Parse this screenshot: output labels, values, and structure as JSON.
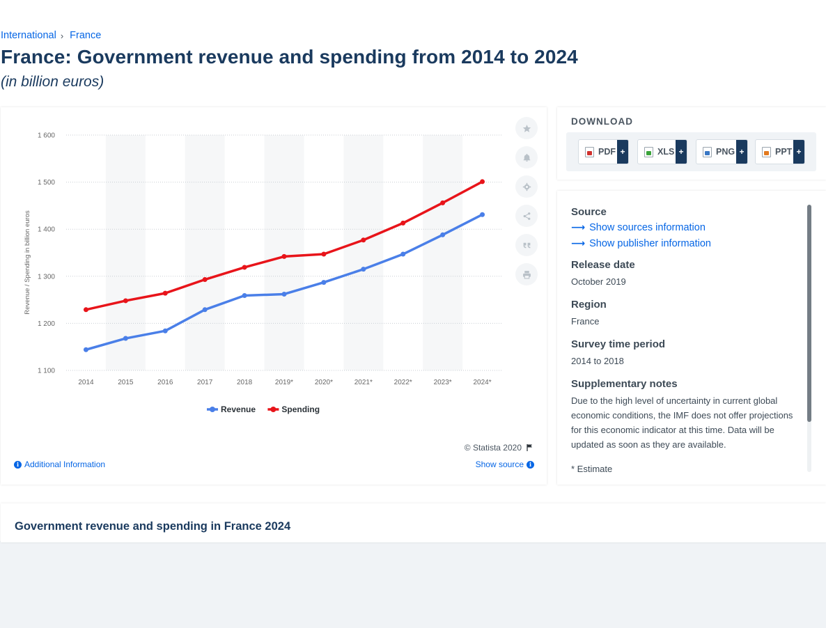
{
  "breadcrumb": {
    "items": [
      "International",
      "France"
    ],
    "separator": "›"
  },
  "page": {
    "title": "France: Government revenue and spending from 2014 to 2024",
    "subtitle": "(in billion euros)"
  },
  "chart_data": {
    "type": "line",
    "ylabel": "Revenue / Spending in billion euros",
    "xlabel": "",
    "categories": [
      "2014",
      "2015",
      "2016",
      "2017",
      "2018",
      "2019*",
      "2020*",
      "2021*",
      "2022*",
      "2023*",
      "2024*"
    ],
    "ylim": [
      1100,
      1600
    ],
    "yticks": [
      1100,
      1200,
      1300,
      1400,
      1500,
      1600
    ],
    "ytick_labels": [
      "1 100",
      "1 200",
      "1 300",
      "1 400",
      "1 500",
      "1 600"
    ],
    "series": [
      {
        "name": "Revenue",
        "color": "#4a7fe8",
        "values": [
          1144,
          1168,
          1184,
          1229,
          1259,
          1262,
          1287,
          1315,
          1347,
          1388,
          1431
        ]
      },
      {
        "name": "Spending",
        "color": "#e8141a",
        "values": [
          1229,
          1248,
          1264,
          1293,
          1319,
          1342,
          1347,
          1377,
          1413,
          1456,
          1501
        ]
      }
    ],
    "grid": true,
    "legend": "bottom-center"
  },
  "chart_footer": {
    "copyright": "© Statista 2020",
    "additional_info": "Additional Information",
    "show_source": "Show source"
  },
  "tools": [
    "star-icon",
    "bell-icon",
    "gear-icon",
    "share-icon",
    "quote-icon",
    "print-icon"
  ],
  "download": {
    "title": "DOWNLOAD",
    "buttons": [
      {
        "label": "PDF",
        "plus": "+",
        "icon_color": "#d0312d"
      },
      {
        "label": "XLS",
        "plus": "+",
        "icon_color": "#3aa33a"
      },
      {
        "label": "PNG",
        "plus": "+",
        "icon_color": "#3a78c4"
      },
      {
        "label": "PPT",
        "plus": "+",
        "icon_color": "#e27a1f"
      }
    ]
  },
  "info": {
    "source_heading": "Source",
    "show_sources": "Show sources information",
    "show_publisher": "Show publisher information",
    "release_heading": "Release date",
    "release_value": "October 2019",
    "region_heading": "Region",
    "region_value": "France",
    "survey_heading": "Survey time period",
    "survey_value": "2014 to 2018",
    "notes_heading": "Supplementary notes",
    "notes_value": "Due to the high level of uncertainty in current global economic conditions, the IMF does not offer projections for this economic indicator at this time. Data will be updated as soon as they are available.",
    "estimate_note": "* Estimate"
  },
  "related": {
    "title": "Government revenue and spending in France 2024"
  },
  "colors": {
    "accent": "#0666e5",
    "navy": "#1a3a5e"
  }
}
